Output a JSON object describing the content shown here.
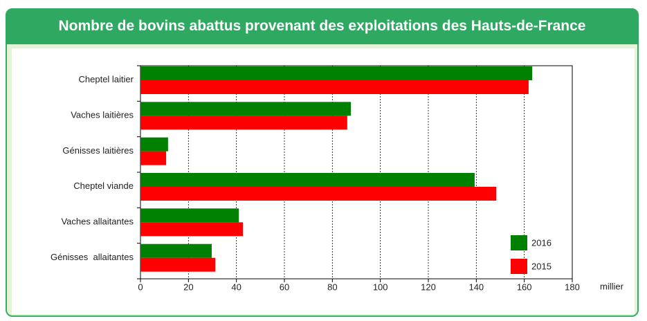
{
  "chart_data": {
    "type": "bar",
    "orientation": "horizontal",
    "title": "Nombre de bovins abattus provenant des exploitations des Hauts-de-France",
    "x_label": "millier",
    "categories": [
      "Cheptel laitier",
      "Vaches laitières",
      "Génisses laitières",
      "Cheptel viande",
      "Vaches allaitantes",
      "Génisses  allaitantes"
    ],
    "series": [
      {
        "name": "2016",
        "color": "#008000",
        "values": [
          163.3,
          87.7,
          11.5,
          139.3,
          41,
          29.7
        ]
      },
      {
        "name": "2015",
        "color": "#ff0000",
        "values": [
          161.8,
          86.2,
          10.7,
          148.3,
          42.7,
          31.2
        ]
      }
    ],
    "xlim": [
      0,
      180
    ],
    "xticks": [
      0,
      20,
      40,
      60,
      80,
      100,
      120,
      140,
      160,
      180
    ],
    "grid": true,
    "legend": "lower right"
  }
}
